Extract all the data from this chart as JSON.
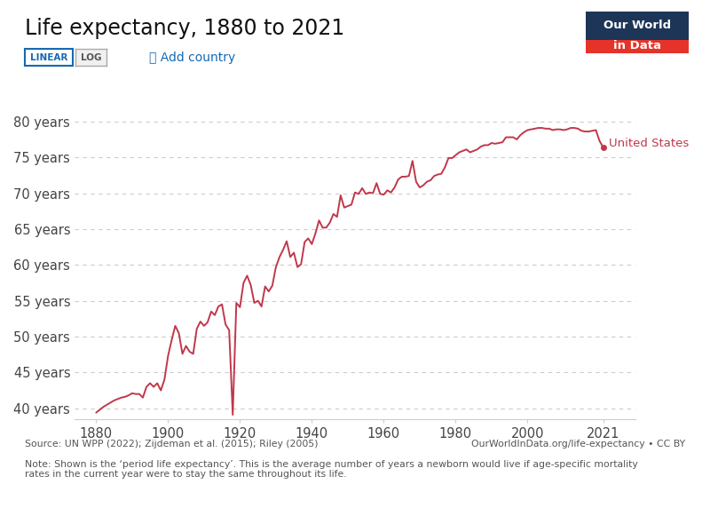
{
  "title": "Life expectancy, 1880 to 2021",
  "line_color": "#c0384b",
  "background_color": "#ffffff",
  "xlim": [
    1874,
    2030
  ],
  "ylim": [
    38.5,
    81
  ],
  "yticks": [
    40,
    45,
    50,
    55,
    60,
    65,
    70,
    75,
    80
  ],
  "ytick_labels": [
    "40 years",
    "45 years",
    "50 years",
    "55 years",
    "60 years",
    "65 years",
    "70 years",
    "75 years",
    "80 years"
  ],
  "xticks": [
    1880,
    1900,
    1920,
    1940,
    1960,
    1980,
    2000,
    2021
  ],
  "label_text": "United States",
  "source_text": "Source: UN WPP (2022); Zijdeman et al. (2015); Riley (2005)",
  "note_text": "Note: Shown is the ‘period life expectancy’. This is the average number of years a newborn would live if age-specific mortality\nrates in the current year were to stay the same throughout its life.",
  "owid_text": "OurWorldInData.org/life-expectancy • CC BY",
  "owid_logo_bg": "#1d3557",
  "owid_logo_red": "#e63329",
  "btn_color": "#1469b4",
  "years": [
    1880,
    1881,
    1882,
    1883,
    1884,
    1885,
    1886,
    1887,
    1888,
    1889,
    1890,
    1891,
    1892,
    1893,
    1894,
    1895,
    1896,
    1897,
    1898,
    1899,
    1900,
    1901,
    1902,
    1903,
    1904,
    1905,
    1906,
    1907,
    1908,
    1909,
    1910,
    1911,
    1912,
    1913,
    1914,
    1915,
    1916,
    1917,
    1918,
    1919,
    1920,
    1921,
    1922,
    1923,
    1924,
    1925,
    1926,
    1927,
    1928,
    1929,
    1930,
    1931,
    1932,
    1933,
    1934,
    1935,
    1936,
    1937,
    1938,
    1939,
    1940,
    1941,
    1942,
    1943,
    1944,
    1945,
    1946,
    1947,
    1948,
    1949,
    1950,
    1951,
    1952,
    1953,
    1954,
    1955,
    1956,
    1957,
    1958,
    1959,
    1960,
    1961,
    1962,
    1963,
    1964,
    1965,
    1966,
    1967,
    1968,
    1969,
    1970,
    1971,
    1972,
    1973,
    1974,
    1975,
    1976,
    1977,
    1978,
    1979,
    1980,
    1981,
    1982,
    1983,
    1984,
    1985,
    1986,
    1987,
    1988,
    1989,
    1990,
    1991,
    1992,
    1993,
    1994,
    1995,
    1996,
    1997,
    1998,
    1999,
    2000,
    2001,
    2002,
    2003,
    2004,
    2005,
    2006,
    2007,
    2008,
    2009,
    2010,
    2011,
    2012,
    2013,
    2014,
    2015,
    2016,
    2017,
    2018,
    2019,
    2020,
    2021
  ],
  "values": [
    39.4,
    39.8,
    40.2,
    40.5,
    40.8,
    41.1,
    41.3,
    41.5,
    41.6,
    41.8,
    42.1,
    42.0,
    42.0,
    41.5,
    43.0,
    43.5,
    43.0,
    43.5,
    42.5,
    44.0,
    47.3,
    49.5,
    51.5,
    50.5,
    47.6,
    48.7,
    47.9,
    47.6,
    51.1,
    52.1,
    51.5,
    52.0,
    53.5,
    53.0,
    54.2,
    54.5,
    51.7,
    50.9,
    39.1,
    54.7,
    54.1,
    57.5,
    58.5,
    57.2,
    54.7,
    55.0,
    54.2,
    57.0,
    56.3,
    57.1,
    59.7,
    61.1,
    62.1,
    63.3,
    61.1,
    61.7,
    59.7,
    60.1,
    63.2,
    63.7,
    62.9,
    64.4,
    66.2,
    65.2,
    65.2,
    65.9,
    67.1,
    66.7,
    69.7,
    68.0,
    68.2,
    68.4,
    70.1,
    69.9,
    70.7,
    69.9,
    70.1,
    70.0,
    71.4,
    69.9,
    69.8,
    70.4,
    70.1,
    70.8,
    71.9,
    72.3,
    72.3,
    72.4,
    74.5,
    71.6,
    70.8,
    71.1,
    71.6,
    71.8,
    72.4,
    72.6,
    72.7,
    73.6,
    74.9,
    74.9,
    75.3,
    75.7,
    75.9,
    76.1,
    75.7,
    75.9,
    76.1,
    76.5,
    76.7,
    76.7,
    77.0,
    76.9,
    77.0,
    77.1,
    77.8,
    77.8,
    77.8,
    77.5,
    78.1,
    78.5,
    78.8,
    78.9,
    79.0,
    79.1,
    79.1,
    79.0,
    79.0,
    78.8,
    78.9,
    78.9,
    78.8,
    78.9,
    79.1,
    79.1,
    79.0,
    78.7,
    78.6,
    78.6,
    78.7,
    78.8,
    77.3,
    76.4
  ]
}
